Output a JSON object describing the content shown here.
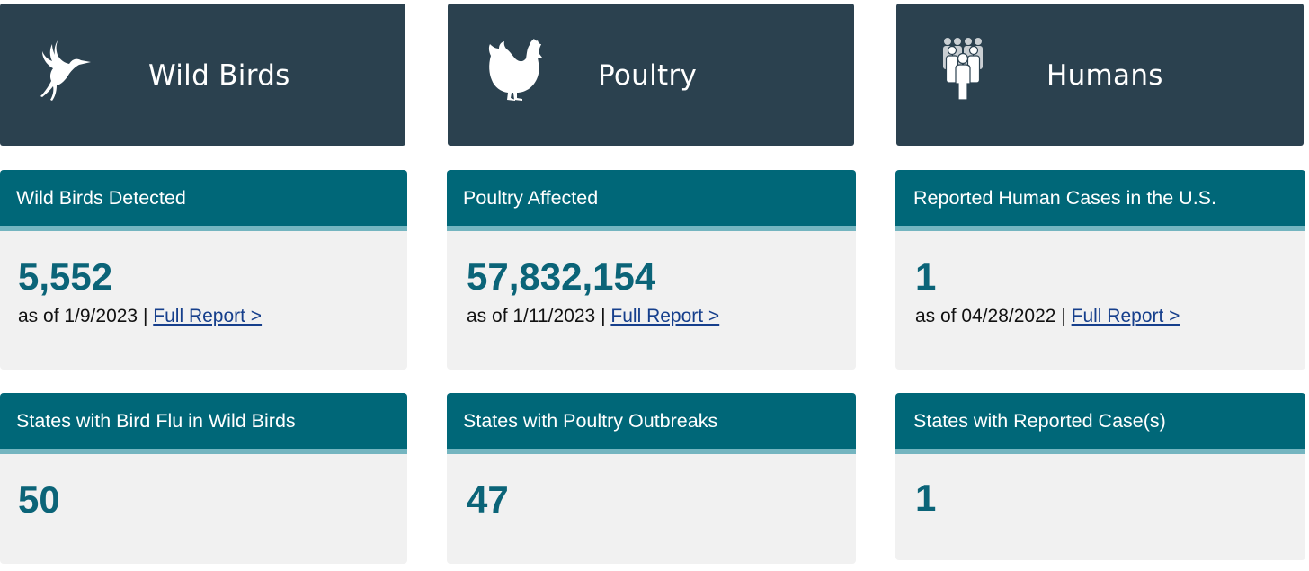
{
  "columns": [
    {
      "banner": {
        "title": "Wild Birds",
        "icon": "heron-icon"
      },
      "stat1": {
        "heading": "Wild Birds Detected",
        "value": "5,552",
        "date_text": "as of 1/9/2023",
        "separator": "|",
        "link": "Full Report >"
      },
      "stat2": {
        "heading": "States with Bird Flu in Wild Birds",
        "value": "50"
      }
    },
    {
      "banner": {
        "title": "Poultry",
        "icon": "chicken-icon"
      },
      "stat1": {
        "heading": "Poultry Affected",
        "value": "57,832,154",
        "date_text": "as of 1/11/2023",
        "separator": "|",
        "link": "Full Report >"
      },
      "stat2": {
        "heading": "States with Poultry Outbreaks",
        "value": "47"
      }
    },
    {
      "banner": {
        "title": "Humans",
        "icon": "people-group-icon"
      },
      "stat1": {
        "heading": "Reported Human Cases in the U.S.",
        "value": "1",
        "date_text": "as of 04/28/2022",
        "separator": "|",
        "link": "Full Report >"
      },
      "stat2": {
        "heading": "States with Reported Case(s)",
        "value": "1"
      }
    }
  ],
  "colors": {
    "banner_bg": "#2b414f",
    "card_header": "#006778",
    "header_accent": "#74b5c0",
    "card_bg": "#f1f1f1",
    "value_text": "#0b6478",
    "link": "#163f8c"
  }
}
